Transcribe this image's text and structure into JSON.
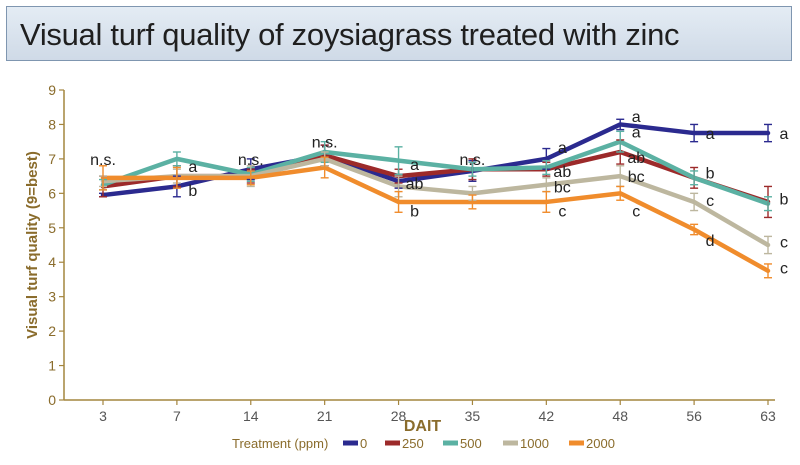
{
  "chart_data": {
    "type": "line",
    "title": "Visual turf quality of zoysiagrass treated with zinc",
    "xlabel": "DAIT",
    "ylabel": "Visual turf quality (9=best)",
    "categories": [
      "3",
      "7",
      "14",
      "21",
      "28",
      "35",
      "42",
      "48",
      "56",
      "63"
    ],
    "ylim": [
      0,
      9
    ],
    "yticks": [
      "0",
      "1",
      "2",
      "3",
      "4",
      "5",
      "6",
      "7",
      "8",
      "9"
    ],
    "grid": false,
    "legend": {
      "title": "Treatment (ppm)",
      "position": "bottom"
    },
    "series": [
      {
        "name": "0",
        "color": "#2b2a8f",
        "values": [
          5.95,
          6.2,
          6.7,
          7.1,
          6.35,
          6.65,
          7.0,
          8.0,
          7.75,
          7.75
        ],
        "errors": [
          0.05,
          0.3,
          0.3,
          0.3,
          0.2,
          0.3,
          0.3,
          0.15,
          0.25,
          0.25
        ]
      },
      {
        "name": "250",
        "color": "#9c2a2a",
        "values": [
          6.2,
          6.5,
          6.5,
          7.1,
          6.5,
          6.7,
          6.7,
          7.2,
          6.45,
          5.75
        ],
        "errors": [
          0.3,
          0.3,
          0.2,
          0.3,
          0.2,
          0.3,
          0.2,
          0.35,
          0.3,
          0.45
        ]
      },
      {
        "name": "500",
        "color": "#5bb1a3",
        "values": [
          6.25,
          7.0,
          6.55,
          7.2,
          6.95,
          6.7,
          6.75,
          7.5,
          6.45,
          5.7
        ],
        "errors": [
          0.15,
          0.2,
          0.2,
          0.3,
          0.4,
          0.2,
          0.2,
          0.3,
          0.2,
          0.2
        ]
      },
      {
        "name": "1000",
        "color": "#bdb79f",
        "values": [
          6.35,
          6.5,
          6.5,
          7.0,
          6.2,
          6.0,
          6.25,
          6.5,
          5.75,
          4.5
        ],
        "errors": [
          0.15,
          0.2,
          0.3,
          0.2,
          0.3,
          0.2,
          0.2,
          0.3,
          0.25,
          0.25
        ]
      },
      {
        "name": "2000",
        "color": "#f08c2c",
        "values": [
          6.45,
          6.45,
          6.45,
          6.75,
          5.75,
          5.75,
          5.75,
          6.0,
          4.95,
          3.75
        ],
        "errors": [
          0.35,
          0.3,
          0.2,
          0.3,
          0.3,
          0.2,
          0.3,
          0.2,
          0.15,
          0.2
        ]
      }
    ],
    "annotations": [
      {
        "text": "n.s.",
        "x": "3",
        "y": 7.0
      },
      {
        "text": "a",
        "x": "7",
        "y": 6.8
      },
      {
        "text": "b",
        "x": "7",
        "y": 6.1
      },
      {
        "text": "n.s.",
        "x": "14",
        "y": 7.0
      },
      {
        "text": "n.s.",
        "x": "21",
        "y": 7.5
      },
      {
        "text": "a",
        "x": "28",
        "y": 6.85
      },
      {
        "text": "ab",
        "x": "28",
        "y": 6.3
      },
      {
        "text": "b",
        "x": "28",
        "y": 5.5
      },
      {
        "text": "n.s.",
        "x": "35",
        "y": 7.0
      },
      {
        "text": "a",
        "x": "42",
        "y": 7.35
      },
      {
        "text": "ab",
        "x": "42",
        "y": 6.65
      },
      {
        "text": "bc",
        "x": "42",
        "y": 6.2
      },
      {
        "text": "c",
        "x": "42",
        "y": 5.5
      },
      {
        "text": "a",
        "x": "48",
        "y": 8.25
      },
      {
        "text": "a",
        "x": "48",
        "y": 7.8
      },
      {
        "text": "ab",
        "x": "48",
        "y": 7.05
      },
      {
        "text": "bc",
        "x": "48",
        "y": 6.5
      },
      {
        "text": "c",
        "x": "48",
        "y": 5.5
      },
      {
        "text": "a",
        "x": "56",
        "y": 7.75
      },
      {
        "text": "b",
        "x": "56",
        "y": 6.6
      },
      {
        "text": "c",
        "x": "56",
        "y": 5.8
      },
      {
        "text": "d",
        "x": "56",
        "y": 4.65
      },
      {
        "text": "a",
        "x": "63",
        "y": 7.75
      },
      {
        "text": "b",
        "x": "63",
        "y": 5.85
      },
      {
        "text": "c",
        "x": "63",
        "y": 4.6
      },
      {
        "text": "c",
        "x": "63",
        "y": 3.85
      }
    ]
  }
}
